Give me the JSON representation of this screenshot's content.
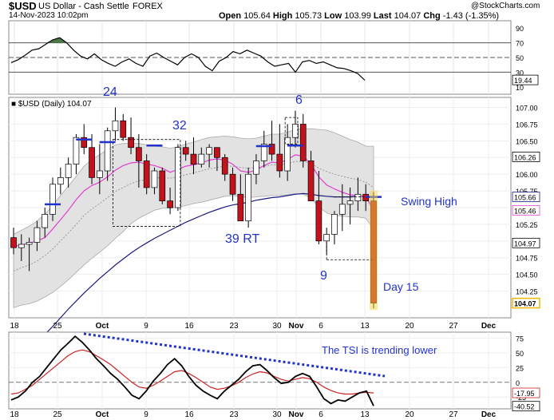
{
  "header": {
    "symbol": "$USD",
    "name": "US Dollar - Cash Settle",
    "exchange": "FOREX",
    "date": "14-Nov-2023 10:02pm",
    "watermark": "@StockCharts.com",
    "open_label": "Open",
    "open": "105.64",
    "high_label": "High",
    "high": "105.73",
    "low_label": "Low",
    "low": "103.99",
    "last_label": "Last",
    "last": "104.07",
    "chg_label": "Chg",
    "chg": "-1.43 (-1.35%)"
  },
  "colors": {
    "up_candle": "#ffffff",
    "down_candle": "#c4121c",
    "candle_outline": "#000000",
    "bollinger_fill": "#e2e2e2",
    "ema_short": "#e040d0",
    "ema_long": "#1a1a80",
    "annotation": "#2233cc",
    "tsi_line": "#000000",
    "tsi_signal": "#cc2222",
    "rsi_overbought_fill": "#4a7a4a"
  },
  "chart_data": [
    {
      "type": "line",
      "panel": "RSI",
      "ylim": [
        0,
        100
      ],
      "yticks": [
        "90",
        "70",
        "50",
        "30",
        "10"
      ],
      "levels": [
        70,
        50,
        30
      ],
      "last_value_label": "19.44",
      "values": [
        43,
        47,
        53,
        60,
        62,
        68,
        74,
        77,
        70,
        60,
        52,
        48,
        55,
        47,
        42,
        38,
        44,
        48,
        42,
        38,
        52,
        56,
        50,
        45,
        40,
        50,
        55,
        50,
        38,
        32,
        45,
        50,
        58,
        55,
        60,
        56,
        52,
        44,
        38,
        40,
        42,
        30,
        44,
        46,
        42,
        44,
        40,
        36,
        35,
        32,
        28,
        19
      ]
    },
    {
      "type": "candlestick",
      "panel": "price",
      "legend": "$USD (Daily) 104.07",
      "ylim": [
        103.85,
        107.15
      ],
      "yticks": [
        "107.00",
        "106.75",
        "106.50",
        "106.25",
        "106.00",
        "105.75",
        "105.50",
        "105.25",
        "105.00",
        "104.75",
        "104.50",
        "104.25"
      ],
      "value_labels": [
        "106.26",
        "105.66",
        "105.46",
        "104.97",
        "104.07"
      ],
      "x_tick_labels": [
        "18",
        "25",
        "Oct",
        "9",
        "16",
        "23",
        "30",
        "Nov",
        "6",
        "13",
        "20",
        "27",
        "Dec"
      ],
      "ohlc": [
        [
          105.05,
          105.2,
          104.8,
          104.9
        ],
        [
          104.9,
          105.1,
          104.7,
          104.95
        ],
        [
          104.95,
          105.05,
          104.55,
          104.98
        ],
        [
          104.98,
          105.3,
          104.85,
          105.2
        ],
        [
          105.2,
          105.5,
          105.05,
          105.4
        ],
        [
          105.4,
          105.95,
          105.3,
          105.85
        ],
        [
          105.85,
          106.1,
          105.7,
          105.95
        ],
        [
          105.95,
          106.25,
          105.8,
          106.15
        ],
        [
          106.15,
          106.6,
          106.0,
          106.55
        ],
        [
          106.55,
          106.75,
          106.3,
          106.4
        ],
        [
          106.4,
          106.6,
          105.85,
          105.95
        ],
        [
          105.95,
          106.45,
          105.7,
          106.05
        ],
        [
          106.05,
          106.7,
          105.9,
          106.65
        ],
        [
          106.65,
          107.0,
          106.5,
          106.8
        ],
        [
          106.8,
          106.9,
          106.5,
          106.55
        ],
        [
          106.55,
          106.85,
          106.3,
          106.4
        ],
        [
          106.4,
          106.6,
          105.8,
          106.2
        ],
        [
          106.2,
          106.3,
          105.7,
          105.8
        ],
        [
          105.8,
          106.1,
          105.7,
          106.05
        ],
        [
          106.05,
          106.1,
          105.55,
          105.6
        ],
        [
          105.6,
          105.8,
          105.4,
          105.5
        ],
        [
          105.5,
          106.45,
          105.45,
          106.4
        ],
        [
          106.4,
          106.5,
          106.2,
          106.3
        ],
        [
          106.3,
          106.55,
          106.0,
          106.15
        ],
        [
          106.15,
          106.4,
          106.1,
          106.3
        ],
        [
          106.3,
          106.45,
          106.1,
          106.4
        ],
        [
          106.4,
          106.4,
          106.05,
          106.25
        ],
        [
          106.25,
          106.3,
          105.9,
          106.0
        ],
        [
          106.0,
          106.1,
          105.6,
          105.7
        ],
        [
          105.7,
          106.0,
          105.3,
          105.3
        ],
        [
          105.3,
          106.1,
          105.2,
          106.0
        ],
        [
          106.0,
          106.3,
          105.85,
          106.2
        ],
        [
          106.2,
          106.65,
          106.1,
          106.45
        ],
        [
          106.45,
          106.8,
          106.2,
          106.3
        ],
        [
          106.3,
          106.75,
          105.95,
          106.05
        ],
        [
          106.05,
          106.75,
          105.9,
          106.55
        ],
        [
          106.55,
          106.95,
          106.4,
          106.75
        ],
        [
          106.75,
          106.9,
          106.1,
          106.2
        ],
        [
          106.2,
          106.35,
          105.6,
          105.6
        ],
        [
          105.6,
          106.05,
          104.95,
          105.0
        ],
        [
          105.0,
          105.2,
          104.8,
          105.1
        ],
        [
          105.1,
          105.45,
          104.95,
          105.4
        ],
        [
          105.4,
          105.85,
          105.15,
          105.55
        ],
        [
          105.55,
          105.8,
          105.25,
          105.6
        ],
        [
          105.6,
          105.95,
          105.45,
          105.7
        ],
        [
          105.7,
          105.85,
          105.45,
          105.6
        ],
        [
          105.6,
          105.73,
          103.99,
          104.07
        ]
      ],
      "ma_short": [
        104.92,
        104.94,
        104.97,
        105.0,
        105.05,
        105.18,
        105.32,
        105.46,
        105.62,
        105.75,
        105.83,
        105.88,
        105.96,
        106.06,
        106.13,
        106.17,
        106.18,
        106.15,
        106.13,
        106.09,
        106.03,
        106.07,
        106.12,
        106.14,
        106.17,
        106.21,
        106.23,
        106.21,
        106.15,
        106.05,
        106.03,
        106.06,
        106.13,
        106.18,
        106.17,
        106.22,
        106.29,
        106.27,
        106.15,
        105.96,
        105.84,
        105.78,
        105.73,
        105.69,
        105.68,
        105.66,
        105.46
      ],
      "ma_long": [
        103.2,
        103.3,
        103.4,
        103.5,
        103.6,
        103.72,
        103.85,
        103.98,
        104.1,
        104.22,
        104.33,
        104.44,
        104.54,
        104.64,
        104.73,
        104.82,
        104.9,
        104.97,
        105.04,
        105.1,
        105.16,
        105.22,
        105.28,
        105.33,
        105.38,
        105.43,
        105.47,
        105.51,
        105.54,
        105.56,
        105.58,
        105.61,
        105.63,
        105.65,
        105.66,
        105.68,
        105.7,
        105.71,
        105.7,
        105.68,
        105.67,
        105.66,
        105.66,
        105.66,
        105.67,
        105.67,
        105.66
      ],
      "bb_mid": [
        104.55,
        104.6,
        104.64,
        104.7,
        104.78,
        104.88,
        105.0,
        105.12,
        105.25,
        105.38,
        105.48,
        105.56,
        105.65,
        105.74,
        105.8,
        105.86,
        105.9,
        105.92,
        105.94,
        105.95,
        105.94,
        105.96,
        105.99,
        106.02,
        106.05,
        106.08,
        106.1,
        106.12,
        106.12,
        106.1,
        106.09,
        106.1,
        106.12,
        106.14,
        106.14,
        106.16,
        106.19,
        106.19,
        106.16,
        106.09,
        106.04,
        106.0,
        105.97,
        105.94,
        105.92,
        105.88,
        105.8
      ],
      "bb_width": [
        0.55,
        0.56,
        0.58,
        0.6,
        0.62,
        0.65,
        0.68,
        0.7,
        0.72,
        0.74,
        0.74,
        0.73,
        0.72,
        0.7,
        0.66,
        0.6,
        0.56,
        0.52,
        0.48,
        0.46,
        0.45,
        0.45,
        0.46,
        0.46,
        0.47,
        0.47,
        0.46,
        0.45,
        0.44,
        0.44,
        0.44,
        0.44,
        0.45,
        0.46,
        0.46,
        0.47,
        0.48,
        0.49,
        0.52,
        0.58,
        0.62,
        0.62,
        0.6,
        0.58,
        0.56,
        0.54,
        0.62
      ],
      "annotations": [
        {
          "text": "24"
        },
        {
          "text": "32"
        },
        {
          "text": "39 RT"
        },
        {
          "text": "6"
        },
        {
          "text": "9"
        },
        {
          "text": "Swing High"
        },
        {
          "text": "Day 15"
        }
      ]
    },
    {
      "type": "line",
      "panel": "TSI",
      "ylim": [
        -45,
        85
      ],
      "yticks": [
        "75",
        "50",
        "25",
        "0",
        "-25"
      ],
      "value_labels": [
        "-17.95",
        "-40.52"
      ],
      "x_tick_labels": [
        "18",
        "25",
        "Oct",
        "9",
        "16",
        "23",
        "30",
        "Nov",
        "6",
        "13",
        "20",
        "27",
        "Dec"
      ],
      "annotation": "The TSI is trending lower",
      "tsi": [
        -30,
        -25,
        -15,
        0,
        10,
        25,
        40,
        55,
        66,
        78,
        68,
        55,
        40,
        28,
        15,
        5,
        -8,
        -22,
        -28,
        -15,
        2,
        15,
        30,
        40,
        28,
        10,
        -5,
        -15,
        -22,
        -28,
        -15,
        -5,
        5,
        18,
        28,
        30,
        20,
        8,
        -2,
        0,
        10,
        15,
        10,
        -8,
        -28,
        -36,
        -30,
        -32,
        -25,
        -18,
        -15,
        -40
      ],
      "signal": [
        -20,
        -18,
        -12,
        -5,
        5,
        15,
        25,
        35,
        45,
        52,
        55,
        52,
        45,
        38,
        30,
        20,
        10,
        0,
        -8,
        -10,
        -5,
        2,
        10,
        18,
        20,
        15,
        8,
        0,
        -8,
        -12,
        -10,
        -6,
        0,
        8,
        14,
        18,
        16,
        10,
        5,
        2,
        5,
        8,
        6,
        0,
        -8,
        -14,
        -18,
        -20,
        -20,
        -18,
        -17,
        -18
      ]
    }
  ]
}
